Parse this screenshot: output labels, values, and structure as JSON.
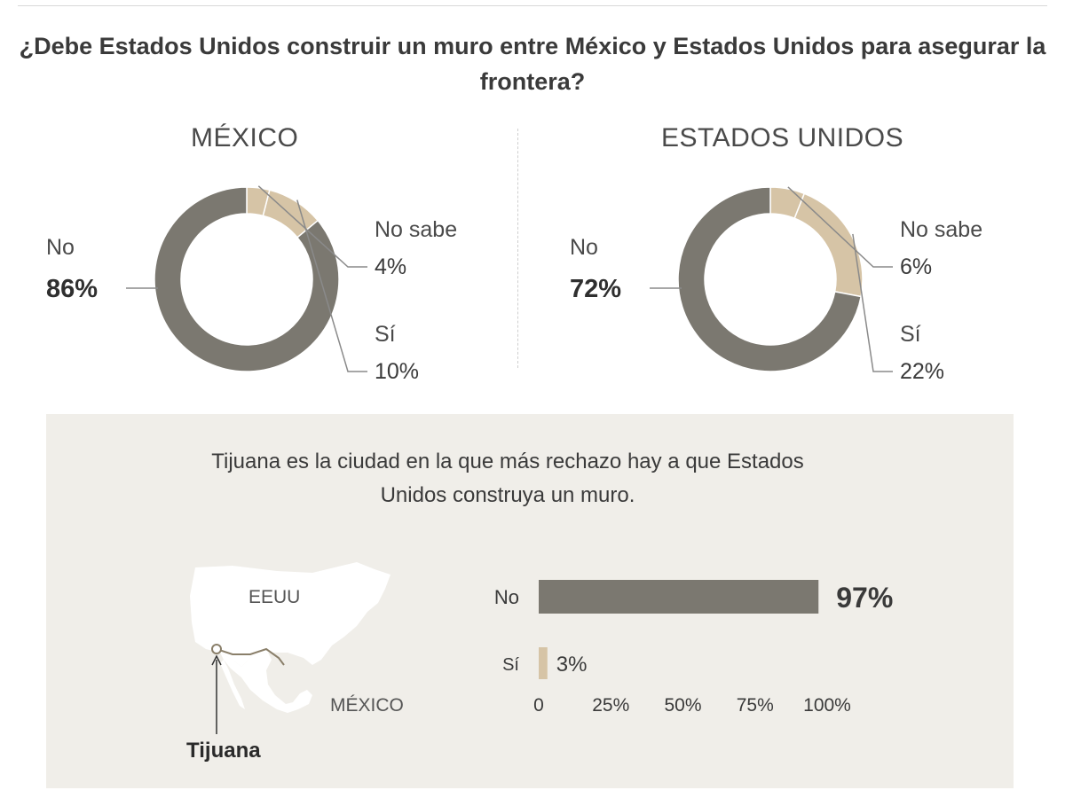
{
  "title": "¿Debe Estados Unidos construir un muro entre México y Estados Unidos para asegurar la frontera?",
  "colors": {
    "no": "#7b7870",
    "yes": "#d6c4a6",
    "nosabe": "#d6c4a6",
    "box_bg": "#f0eee9",
    "text": "#3a3a3a"
  },
  "chart_data": [
    {
      "type": "pie",
      "title": "MÉXICO",
      "categories": [
        "No",
        "No sabe",
        "Sí"
      ],
      "values": [
        86,
        4,
        10
      ],
      "labels": [
        "86%",
        "4%",
        "10%"
      ]
    },
    {
      "type": "pie",
      "title": "ESTADOS UNIDOS",
      "categories": [
        "No",
        "No sabe",
        "Sí"
      ],
      "values": [
        72,
        6,
        22
      ],
      "labels": [
        "72%",
        "6%",
        "22%"
      ]
    },
    {
      "type": "bar",
      "title": "Tijuana es la ciudad en la que más rechazo hay a que Estados Unidos construya un muro.",
      "categories": [
        "No",
        "Sí"
      ],
      "values": [
        97,
        3
      ],
      "labels": [
        "97%",
        "3%"
      ],
      "xlim": [
        0,
        100
      ],
      "ticks": [
        "0",
        "25%",
        "50%",
        "75%",
        "100%"
      ],
      "tick_values": [
        0,
        25,
        50,
        75,
        100
      ]
    }
  ],
  "map": {
    "us_label": "EEUU",
    "mx_label": "MÉXICO",
    "city_label": "Tijuana"
  }
}
